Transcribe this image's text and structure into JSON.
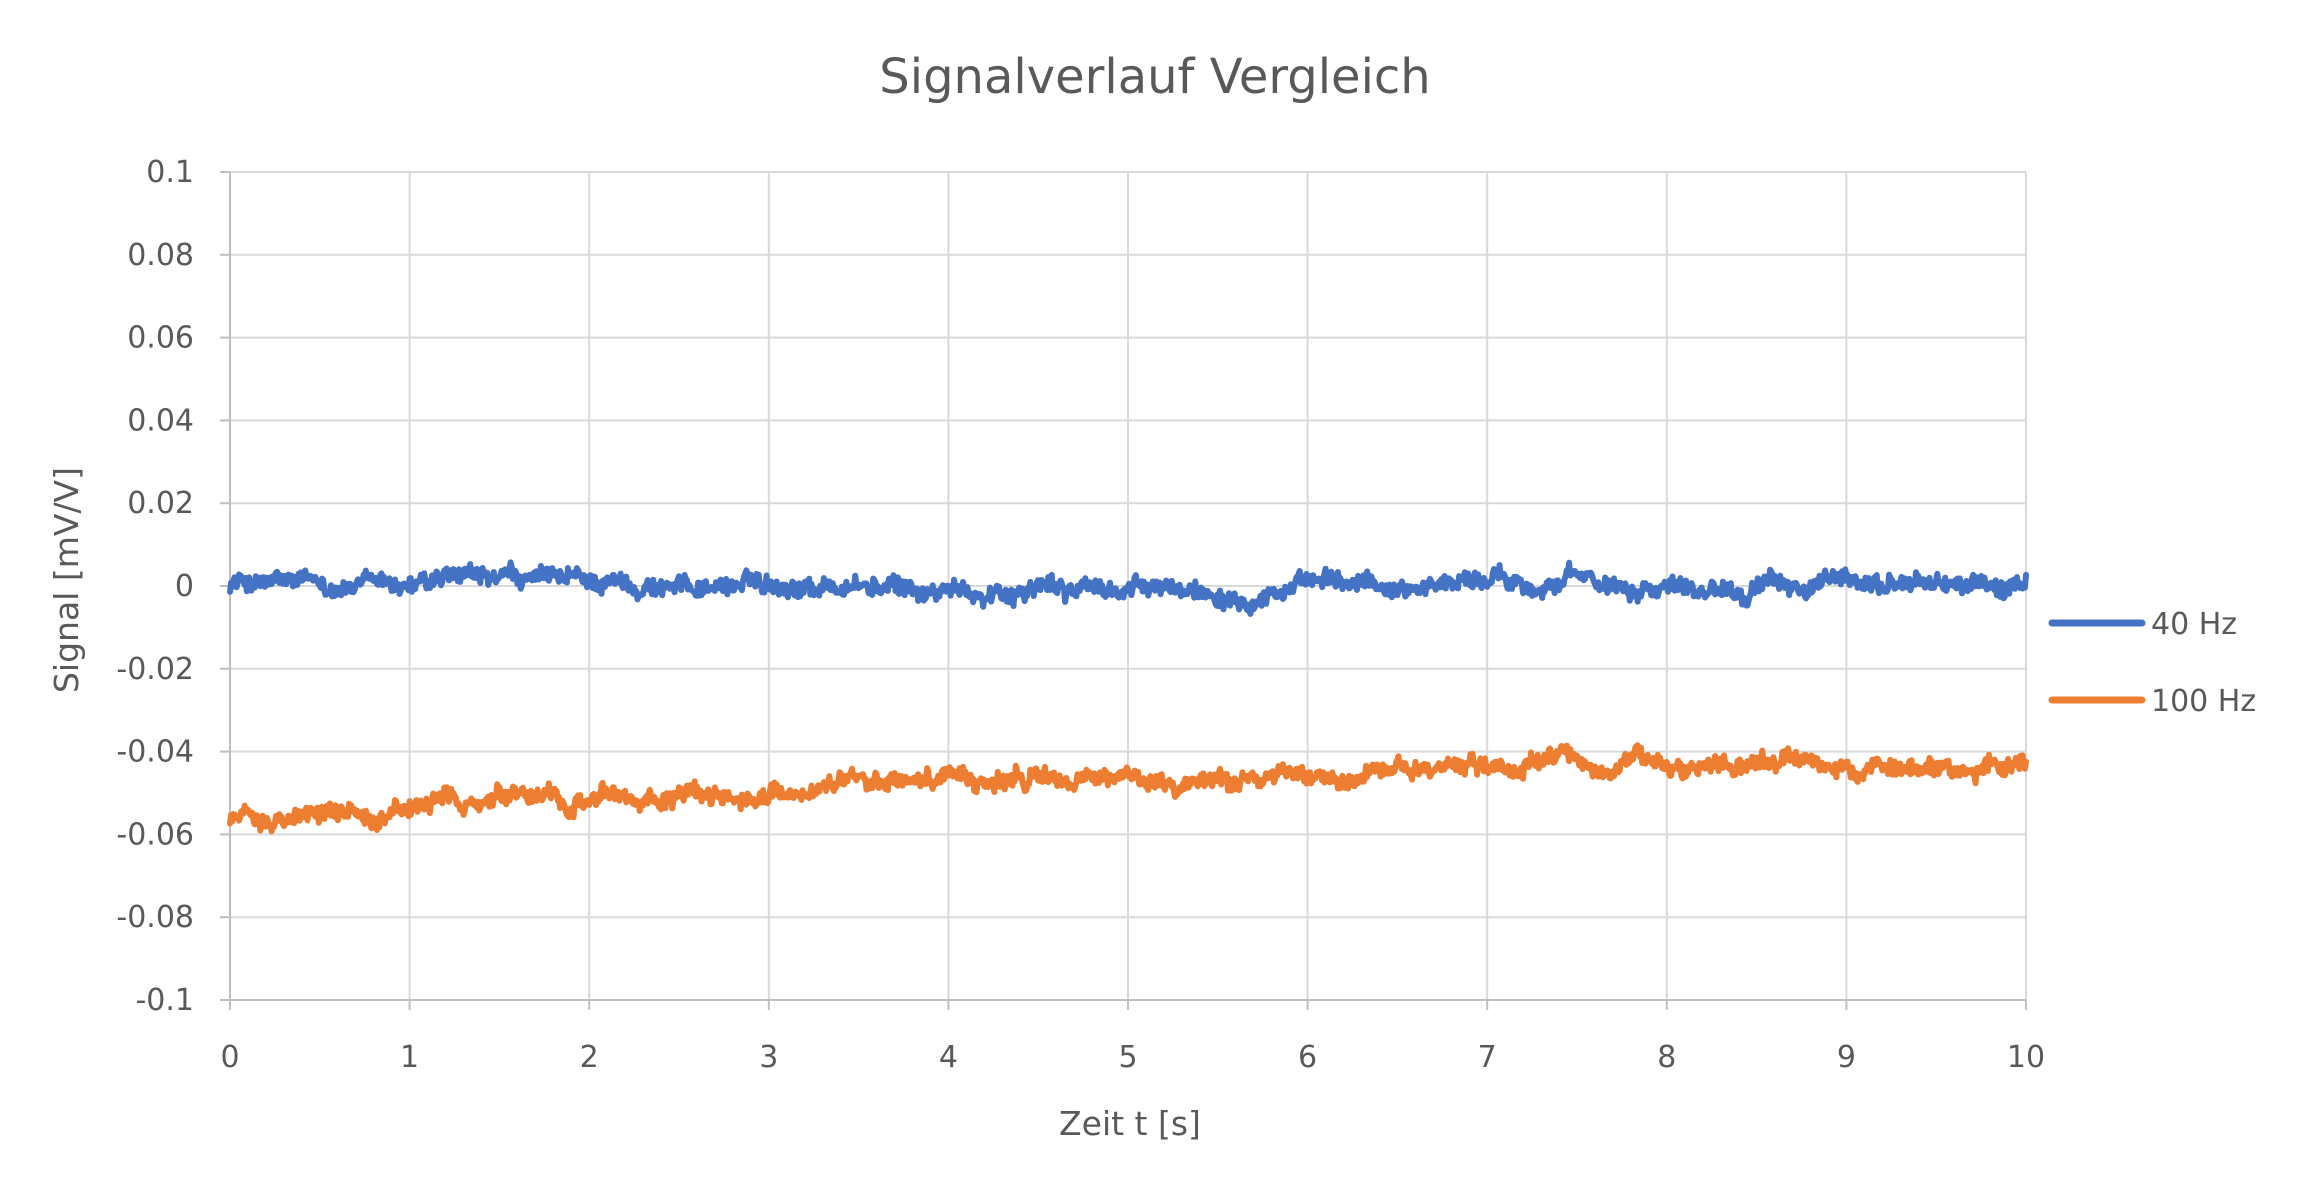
{
  "chart_data": {
    "type": "line",
    "title": "Signalverlauf Vergleich",
    "xlabel": "Zeit t [s]",
    "ylabel": "Signal [mV/V]",
    "xlim": [
      0,
      10
    ],
    "ylim": [
      -0.1,
      0.1
    ],
    "x_ticks": [
      0,
      1,
      2,
      3,
      4,
      5,
      6,
      7,
      8,
      9,
      10
    ],
    "x_tick_labels": [
      "0",
      "1",
      "2",
      "3",
      "4",
      "5",
      "6",
      "7",
      "8",
      "9",
      "10"
    ],
    "y_ticks": [
      0.1,
      0.08,
      0.06,
      0.04,
      0.02,
      0,
      -0.02,
      -0.04,
      -0.06,
      -0.08,
      -0.1
    ],
    "y_tick_labels": [
      "0.1",
      "0.08",
      "0.06",
      "0.04",
      "0.02",
      "0",
      "-0.02",
      "-0.04",
      "-0.06",
      "-0.08",
      "-0.1"
    ],
    "grid": true,
    "legend_position": "right",
    "x": [
      0,
      0.5,
      1,
      1.5,
      2,
      2.5,
      3,
      3.5,
      4,
      4.5,
      5,
      5.5,
      6,
      6.5,
      7,
      7.5,
      8,
      8.5,
      9,
      9.5,
      10
    ],
    "series": [
      {
        "name": "40 Hz",
        "color": "#4472c4",
        "values": [
          0.001,
          0.0,
          0.0,
          0.001,
          0.001,
          0.0,
          0.001,
          0.0,
          -0.002,
          0.0,
          -0.001,
          -0.001,
          0.0,
          0.0,
          0.002,
          0.001,
          0.001,
          0.0,
          0.0,
          0.001,
          -0.001
        ]
      },
      {
        "name": "100 Hz",
        "color": "#ed7d31",
        "values": [
          -0.056,
          -0.055,
          -0.054,
          -0.053,
          -0.051,
          -0.051,
          -0.05,
          -0.048,
          -0.046,
          -0.047,
          -0.047,
          -0.046,
          -0.045,
          -0.044,
          -0.043,
          -0.043,
          -0.042,
          -0.043,
          -0.044,
          -0.044,
          -0.044
        ]
      }
    ]
  }
}
